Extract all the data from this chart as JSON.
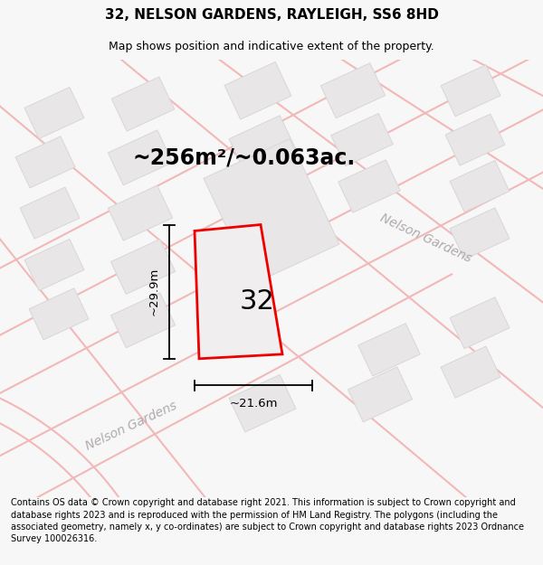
{
  "title": "32, NELSON GARDENS, RAYLEIGH, SS6 8HD",
  "subtitle": "Map shows position and indicative extent of the property.",
  "footer": "Contains OS data © Crown copyright and database right 2021. This information is subject to Crown copyright and database rights 2023 and is reproduced with the permission of HM Land Registry. The polygons (including the associated geometry, namely x, y co-ordinates) are subject to Crown copyright and database rights 2023 Ordnance Survey 100026316.",
  "area_label": "~256m²/~0.063ac.",
  "width_label": "~21.6m",
  "height_label": "~29.9m",
  "property_number": "32",
  "bg_color": "#f7f7f7",
  "map_bg": "#ffffff",
  "road_line_color": "#f2b8b8",
  "building_color": "#e8e6e6",
  "building_edge": "#d8d6d6",
  "property_fill": "#f0eeee",
  "property_outline": "#ee0000",
  "title_fontsize": 11,
  "subtitle_fontsize": 9,
  "footer_fontsize": 7.0,
  "area_label_fontsize": 17,
  "dim_label_fontsize": 9.5,
  "number_fontsize": 22,
  "street_label_fontsize": 10
}
